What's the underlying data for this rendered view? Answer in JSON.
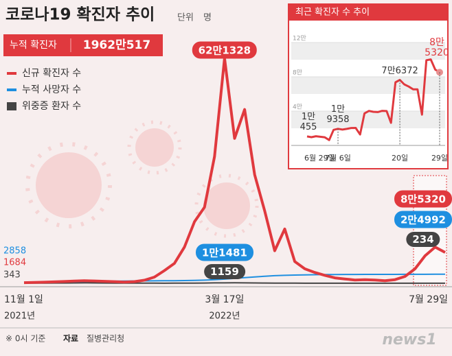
{
  "title": "코로나19 확진자 추이",
  "unit_label": "단위",
  "unit": "명",
  "cumulative": {
    "label": "누적 확진자",
    "value": "1962만517"
  },
  "footnote": "※ 0시 기준",
  "source_label": "자료",
  "source": "질병관리청",
  "logo": "news1",
  "chart_data": [
    {
      "type": "line",
      "categories": [
        "11월 1일",
        null,
        null,
        null,
        null,
        null,
        null,
        null,
        null,
        null,
        null,
        null,
        null,
        null,
        null,
        null,
        null,
        null,
        null,
        null,
        "3월 17일",
        null,
        null,
        null,
        null,
        null,
        null,
        null,
        null,
        null,
        null,
        null,
        null,
        null,
        null,
        null,
        null,
        null,
        null,
        null,
        null,
        null,
        "7월 29일"
      ],
      "year_labels": [
        "2021년",
        "2022년"
      ],
      "series": [
        {
          "name": "신규 확진자 수",
          "color": "#e0393e",
          "values": [
            1684,
            2500,
            3000,
            4000,
            5000,
            6000,
            7000,
            6500,
            5500,
            4500,
            3500,
            4500,
            8500,
            17000,
            35000,
            55000,
            100000,
            170000,
            210000,
            350000,
            621328,
            400000,
            480000,
            300000,
            200000,
            90000,
            150000,
            60000,
            40000,
            30000,
            22000,
            15000,
            12000,
            9000,
            10000,
            9000,
            7000,
            10000,
            19000,
            40000,
            76000,
            100000,
            85320
          ],
          "value_labels": [
            "1684",
            null,
            null,
            null,
            null,
            null,
            null,
            null,
            null,
            null,
            null,
            null,
            null,
            null,
            null,
            null,
            null,
            null,
            null,
            null,
            "62만1328",
            null,
            null,
            null,
            null,
            null,
            null,
            null,
            null,
            null,
            null,
            null,
            null,
            null,
            null,
            null,
            null,
            null,
            null,
            null,
            null,
            null,
            "8만5320"
          ]
        },
        {
          "name": "누적 사망자 수",
          "color": "#1e8fe0",
          "values": [
            2858,
            3100,
            3400,
            3700,
            4000,
            4300,
            4700,
            5100,
            5500,
            5800,
            6100,
            6400,
            6600,
            6800,
            7000,
            7200,
            7500,
            8000,
            8800,
            9800,
            11481,
            13500,
            15500,
            17500,
            19500,
            21000,
            22000,
            22800,
            23300,
            23700,
            24000,
            24200,
            24350,
            24450,
            24550,
            24600,
            24650,
            24700,
            24750,
            24800,
            24850,
            24920,
            24992
          ],
          "value_labels": [
            "2858",
            null,
            null,
            null,
            null,
            null,
            null,
            null,
            null,
            null,
            null,
            null,
            null,
            null,
            null,
            null,
            null,
            null,
            null,
            null,
            "1만1481",
            null,
            null,
            null,
            null,
            null,
            null,
            null,
            null,
            null,
            null,
            null,
            null,
            null,
            null,
            null,
            null,
            null,
            null,
            null,
            null,
            null,
            "2만4992"
          ]
        },
        {
          "name": "위중증 환자 수",
          "color": "#444444",
          "values": [
            343,
            450,
            550,
            700,
            850,
            1000,
            1050,
            900,
            800,
            650,
            550,
            430,
            400,
            300,
            280,
            300,
            450,
            650,
            850,
            1100,
            1159,
            1250,
            1100,
            900,
            700,
            500,
            400,
            300,
            230,
            180,
            150,
            130,
            100,
            98,
            100,
            110,
            120,
            130,
            150,
            180,
            200,
            220,
            234
          ],
          "value_labels": [
            "343",
            null,
            null,
            null,
            null,
            null,
            null,
            null,
            null,
            null,
            null,
            null,
            null,
            null,
            null,
            null,
            null,
            null,
            null,
            null,
            "1159",
            null,
            null,
            null,
            null,
            null,
            null,
            null,
            null,
            null,
            null,
            null,
            null,
            null,
            null,
            null,
            null,
            null,
            null,
            null,
            null,
            null,
            "234"
          ]
        }
      ],
      "legend": "top-left"
    },
    {
      "type": "line",
      "title": "최근 확진자 수 추이",
      "categories": [
        "6월 29일",
        null,
        null,
        null,
        null,
        null,
        null,
        "7월 6일",
        null,
        null,
        null,
        null,
        null,
        null,
        null,
        null,
        null,
        null,
        null,
        null,
        null,
        "20일",
        null,
        null,
        null,
        null,
        null,
        null,
        null,
        null,
        "29일"
      ],
      "values": [
        10455,
        9591,
        10715,
        10059,
        9528,
        6253,
        18147,
        19358,
        18504,
        19316,
        20286,
        20410,
        12693,
        37360,
        40266,
        39185,
        38882,
        40342,
        40059,
        26299,
        73582,
        76372,
        71170,
        68632,
        65433,
        65373,
        35883,
        99327,
        100285,
        88384,
        85320
      ],
      "value_labels": [
        "1만\n455",
        null,
        null,
        null,
        null,
        null,
        null,
        "1만\n9358",
        null,
        null,
        null,
        null,
        null,
        null,
        null,
        null,
        null,
        null,
        null,
        null,
        null,
        "7만6372",
        null,
        null,
        null,
        null,
        null,
        null,
        null,
        null,
        "8만\n5320"
      ],
      "color": "#e0393e",
      "ylim": [
        0,
        120000
      ],
      "yticks": [
        {
          "value": 40000,
          "label": "4만"
        },
        {
          "value": 80000,
          "label": "8만"
        },
        {
          "value": 120000,
          "label": "12만"
        }
      ],
      "grid": true
    }
  ]
}
